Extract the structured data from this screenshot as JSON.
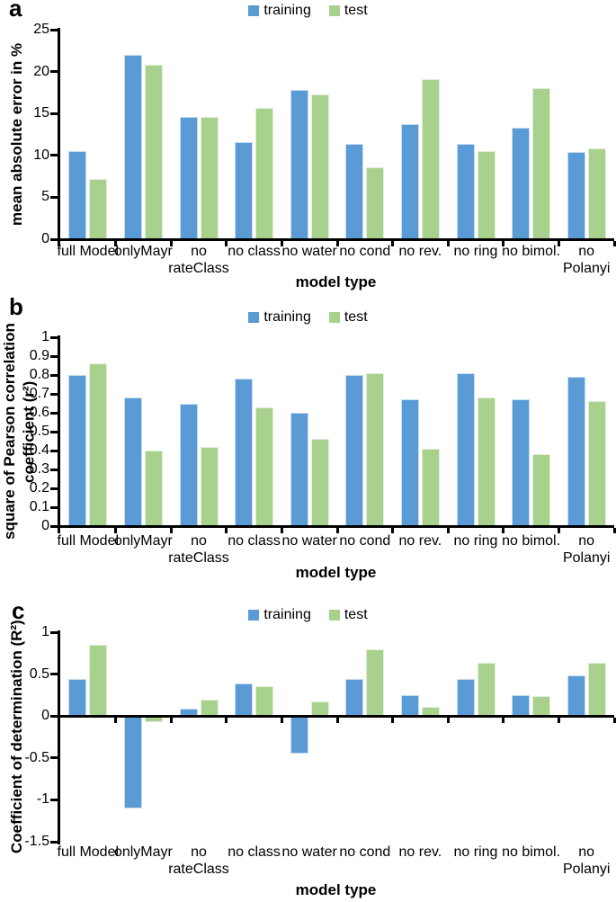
{
  "chart_data": [
    {
      "type": "bar",
      "panel_label": "a",
      "xlabel": "model type",
      "ylabel": "mean absolute error in %",
      "ylim": [
        0,
        25
      ],
      "legend_position": "top-center",
      "grid": false,
      "categories": [
        "full Model",
        "onlyMayr",
        "no\nrateClass",
        "no class",
        "no water",
        "no cond",
        "no rev.",
        "no ring",
        "no bimol.",
        "no\nPolanyi"
      ],
      "yticks": [
        {
          "label": "25",
          "value": 25
        },
        {
          "label": "20",
          "value": 20
        },
        {
          "label": "15",
          "value": 15
        },
        {
          "label": "10",
          "value": 10
        },
        {
          "label": "5",
          "value": 5
        },
        {
          "label": "0",
          "value": 0
        }
      ],
      "series": [
        {
          "name": "training",
          "color": "#5B9BD5",
          "values": [
            10.5,
            22.0,
            14.6,
            11.6,
            17.8,
            11.4,
            13.7,
            11.4,
            13.3,
            10.4
          ]
        },
        {
          "name": "test",
          "color": "#A9D18E",
          "values": [
            7.2,
            20.8,
            14.6,
            15.7,
            17.3,
            8.6,
            19.1,
            10.5,
            18.0,
            10.8
          ]
        }
      ]
    },
    {
      "type": "bar",
      "panel_label": "b",
      "xlabel": "model type",
      "ylabel": "square of Pearson correlation\ncoefficient (r²)",
      "ylim": [
        0,
        1
      ],
      "legend_position": "top-center",
      "grid": false,
      "categories": [
        "full Model",
        "onlyMayr",
        "no\nrateClass",
        "no class",
        "no water",
        "no cond",
        "no rev.",
        "no ring",
        "no bimol.",
        "no\nPolanyi"
      ],
      "yticks": [
        {
          "label": "1",
          "value": 1
        },
        {
          "label": "0.9",
          "value": 0.9
        },
        {
          "label": "0.8",
          "value": 0.8
        },
        {
          "label": "0.7",
          "value": 0.7
        },
        {
          "label": "0.6",
          "value": 0.6
        },
        {
          "label": "0.5",
          "value": 0.5
        },
        {
          "label": "0.4",
          "value": 0.4
        },
        {
          "label": "0.3",
          "value": 0.3
        },
        {
          "label": "0.2",
          "value": 0.2
        },
        {
          "label": "0.1",
          "value": 0.1
        },
        {
          "label": "0",
          "value": 0
        }
      ],
      "series": [
        {
          "name": "training",
          "color": "#5B9BD5",
          "values": [
            0.8,
            0.68,
            0.65,
            0.78,
            0.6,
            0.8,
            0.67,
            0.81,
            0.67,
            0.79
          ]
        },
        {
          "name": "test",
          "color": "#A9D18E",
          "values": [
            0.86,
            0.4,
            0.42,
            0.63,
            0.46,
            0.81,
            0.41,
            0.68,
            0.38,
            0.66
          ]
        }
      ]
    },
    {
      "type": "bar",
      "panel_label": "c",
      "xlabel": "model type",
      "ylabel": "Coefficient of determination (R²)",
      "ylim": [
        -1.5,
        1
      ],
      "legend_position": "top-center",
      "grid": false,
      "categories": [
        "full Model",
        "onlyMayr",
        "no\nrateClass",
        "no class",
        "no water",
        "no cond",
        "no rev.",
        "no ring",
        "no bimol.",
        "no\nPolanyi"
      ],
      "yticks": [
        {
          "label": "1",
          "value": 1
        },
        {
          "label": "0.5",
          "value": 0.5
        },
        {
          "label": "0",
          "value": 0
        },
        {
          "label": "-0.5",
          "value": -0.5
        },
        {
          "label": "-1",
          "value": -1
        },
        {
          "label": "-1.5",
          "value": -1.5
        }
      ],
      "series": [
        {
          "name": "training",
          "color": "#5B9BD5",
          "values": [
            0.44,
            -1.1,
            0.09,
            0.39,
            -0.45,
            0.44,
            0.25,
            0.44,
            0.25,
            0.49
          ]
        },
        {
          "name": "test",
          "color": "#A9D18E",
          "values": [
            0.85,
            -0.07,
            0.19,
            0.36,
            0.17,
            0.8,
            0.11,
            0.64,
            0.24,
            0.64
          ]
        }
      ]
    }
  ]
}
